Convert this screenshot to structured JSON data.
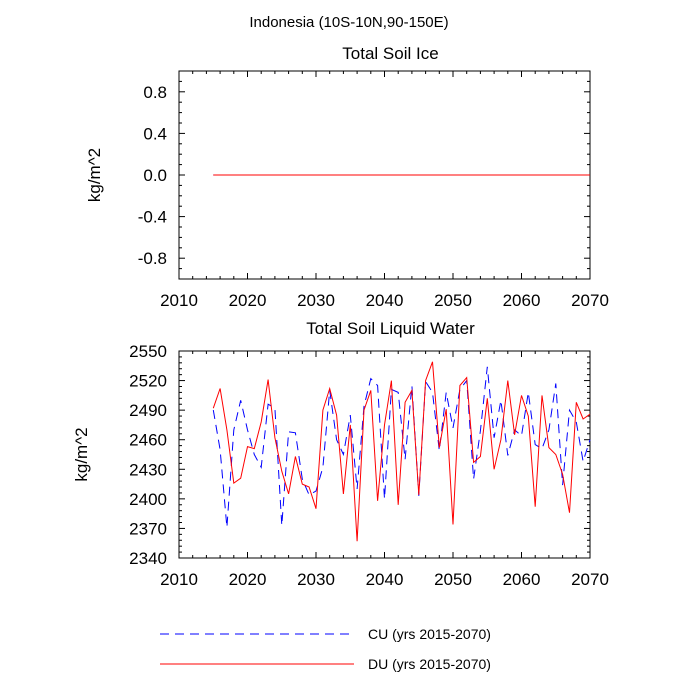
{
  "figure": {
    "suptitle": "Indonesia (10S-10N,90-150E)"
  },
  "legend": [
    {
      "label": "CU (yrs 2015-2070)",
      "color": "#0000ff",
      "dash": "dashed"
    },
    {
      "label": "DU (yrs 2015-2070)",
      "color": "#ff0000",
      "dash": "solid"
    }
  ],
  "chart_data": [
    {
      "type": "line",
      "title": "Total Soil Ice",
      "xlabel": "",
      "ylabel": "kg/m^2",
      "xlim": [
        2010,
        2070
      ],
      "ylim": [
        -1.0,
        1.0
      ],
      "xticks": [
        2010,
        2020,
        2030,
        2040,
        2050,
        2060,
        2070
      ],
      "xtick_labels": [
        "2010",
        "2020",
        "2030",
        "2040",
        "2050",
        "2060",
        "2070"
      ],
      "yticks": [
        0.8,
        0.4,
        0.0,
        -0.4,
        -0.8
      ],
      "ytick_labels": [
        "0.8",
        "0.4",
        "0.0",
        "-0.4",
        "-0.8"
      ],
      "x": [
        2015,
        2070
      ],
      "series": [
        {
          "name": "CU (yrs 2015-2070)",
          "color": "#0000ff",
          "dash": "dashed",
          "values": [
            0.0,
            0.0
          ]
        },
        {
          "name": "DU (yrs 2015-2070)",
          "color": "#ff0000",
          "dash": "solid",
          "values": [
            0.0,
            0.0
          ]
        }
      ]
    },
    {
      "type": "line",
      "title": "Total Soil Liquid Water",
      "xlabel": "",
      "ylabel": "kg/m^2",
      "xlim": [
        2010,
        2070
      ],
      "ylim": [
        2340,
        2550
      ],
      "xticks": [
        2010,
        2020,
        2030,
        2040,
        2050,
        2060,
        2070
      ],
      "xtick_labels": [
        "2010",
        "2020",
        "2030",
        "2040",
        "2050",
        "2060",
        "2070"
      ],
      "yticks": [
        2550,
        2520,
        2490,
        2460,
        2430,
        2400,
        2370,
        2340
      ],
      "ytick_labels": [
        "2550",
        "2520",
        "2490",
        "2460",
        "2430",
        "2400",
        "2370",
        "2340"
      ],
      "x": [
        2015,
        2016,
        2017,
        2018,
        2019,
        2020,
        2021,
        2022,
        2023,
        2024,
        2025,
        2026,
        2027,
        2028,
        2029,
        2030,
        2031,
        2032,
        2033,
        2034,
        2035,
        2036,
        2037,
        2038,
        2039,
        2040,
        2041,
        2042,
        2043,
        2044,
        2045,
        2046,
        2047,
        2048,
        2049,
        2050,
        2051,
        2052,
        2053,
        2054,
        2055,
        2056,
        2057,
        2058,
        2059,
        2060,
        2061,
        2062,
        2063,
        2064,
        2065,
        2066,
        2067,
        2068,
        2069,
        2070
      ],
      "series": [
        {
          "name": "CU (yrs 2015-2070)",
          "color": "#0000ff",
          "dash": "dashed",
          "values": [
            2490,
            2450,
            2371,
            2470,
            2500,
            2470,
            2445,
            2432,
            2496,
            2492,
            2373,
            2468,
            2467,
            2420,
            2404,
            2408,
            2432,
            2510,
            2460,
            2445,
            2485,
            2410,
            2494,
            2522,
            2515,
            2400,
            2511,
            2508,
            2440,
            2515,
            2403,
            2519,
            2508,
            2449,
            2508,
            2472,
            2511,
            2520,
            2420,
            2469,
            2534,
            2462,
            2500,
            2444,
            2470,
            2464,
            2508,
            2455,
            2451,
            2470,
            2517,
            2414,
            2490,
            2478,
            2438,
            2460
          ]
        },
        {
          "name": "DU (yrs 2015-2070)",
          "color": "#ff0000",
          "dash": "solid",
          "values": [
            2492,
            2512,
            2470,
            2416,
            2421,
            2453,
            2451,
            2478,
            2521,
            2462,
            2428,
            2405,
            2443,
            2415,
            2412,
            2390,
            2490,
            2512,
            2485,
            2405,
            2475,
            2357,
            2490,
            2510,
            2398,
            2475,
            2520,
            2394,
            2498,
            2510,
            2404,
            2520,
            2539,
            2452,
            2491,
            2374,
            2515,
            2523,
            2437,
            2443,
            2502,
            2430,
            2460,
            2520,
            2465,
            2505,
            2484,
            2392,
            2505,
            2452,
            2445,
            2425,
            2386,
            2498,
            2481,
            2486
          ]
        }
      ]
    }
  ]
}
